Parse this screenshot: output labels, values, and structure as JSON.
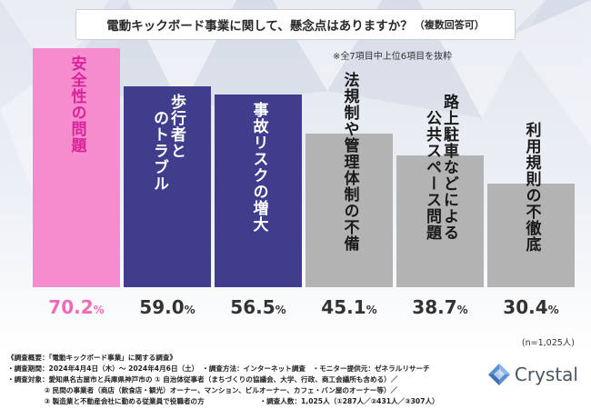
{
  "title": {
    "main": "電動キックボード事業に関して、懸念点はありますか？",
    "sub": "（複数回答可）"
  },
  "note": "※全7項目中上位6項目を抜粋",
  "sample_note": "(n=1,025人)",
  "chart_data": {
    "type": "bar",
    "title": "電動キックボード事業に関して、懸念点はありますか？（複数回答可）",
    "categories": [
      "安全性の問題",
      "歩行者とのトラブル",
      "事故リスクの増大",
      "法規制や管理体制の不備",
      "路上駐車などによる公共スペース問題",
      "利用規則の不徹底"
    ],
    "category_columns": [
      [
        "安全性の問題"
      ],
      [
        "歩行者と",
        "のトラブル"
      ],
      [
        "事故リスクの増大"
      ],
      [
        "法規制や管理体制の不備"
      ],
      [
        "路上駐車などによる",
        "公共スペース問題"
      ],
      [
        "利用規則の不徹底"
      ]
    ],
    "values": [
      70.2,
      59.0,
      56.5,
      45.1,
      38.7,
      30.4
    ],
    "value_labels": [
      {
        "num": "70.2",
        "unit": "%"
      },
      {
        "num": "59.0",
        "unit": "%"
      },
      {
        "num": "56.5",
        "unit": "%"
      },
      {
        "num": "45.1",
        "unit": "%"
      },
      {
        "num": "38.7",
        "unit": "%"
      },
      {
        "num": "30.4",
        "unit": "%"
      }
    ],
    "colors": [
      "#f58ccd",
      "#3f3d8c",
      "#3f3d8c",
      "#b3b3b3",
      "#b3b3b3",
      "#b3b3b3"
    ],
    "label_colors": [
      "#d9239a",
      "#ffffff",
      "#ffffff",
      "#1a1a1a",
      "#1a1a1a",
      "#1a1a1a"
    ],
    "value_colors": [
      "#f06ab8",
      "#333333",
      "#333333",
      "#333333",
      "#333333",
      "#333333"
    ],
    "ylim": [
      0,
      80
    ],
    "xlabel": "",
    "ylabel": ""
  },
  "footer": {
    "lines": [
      "《調査概要：「電動キックボード事業」に関する調査》",
      "・調査期間：2024年4月4日（木）～ 2024年4月6日（土）　・調査方法：インターネット調査　・モニター提供元：ゼネラルリサーチ",
      "・調査対象：愛知県名古屋市と兵庫県神戸市の ① 自治体従事者（まちづくりの協議会、大学、行政、商工会議所も含める）／",
      "　　　　　 ② 民間の事業者（商店（飲食店・観光）オーナー、マンション、ビルオーナー、カフェ・バン屋のオーナー等）／",
      "　　　　　 ③ 製造業と不動産会社に勤める従業員で役職者の方　　　　　　　　・調査人数：1,025人（①287人／②431人／③307人）"
    ]
  },
  "logo": {
    "text": "Crystal",
    "color": "#4a5566"
  }
}
